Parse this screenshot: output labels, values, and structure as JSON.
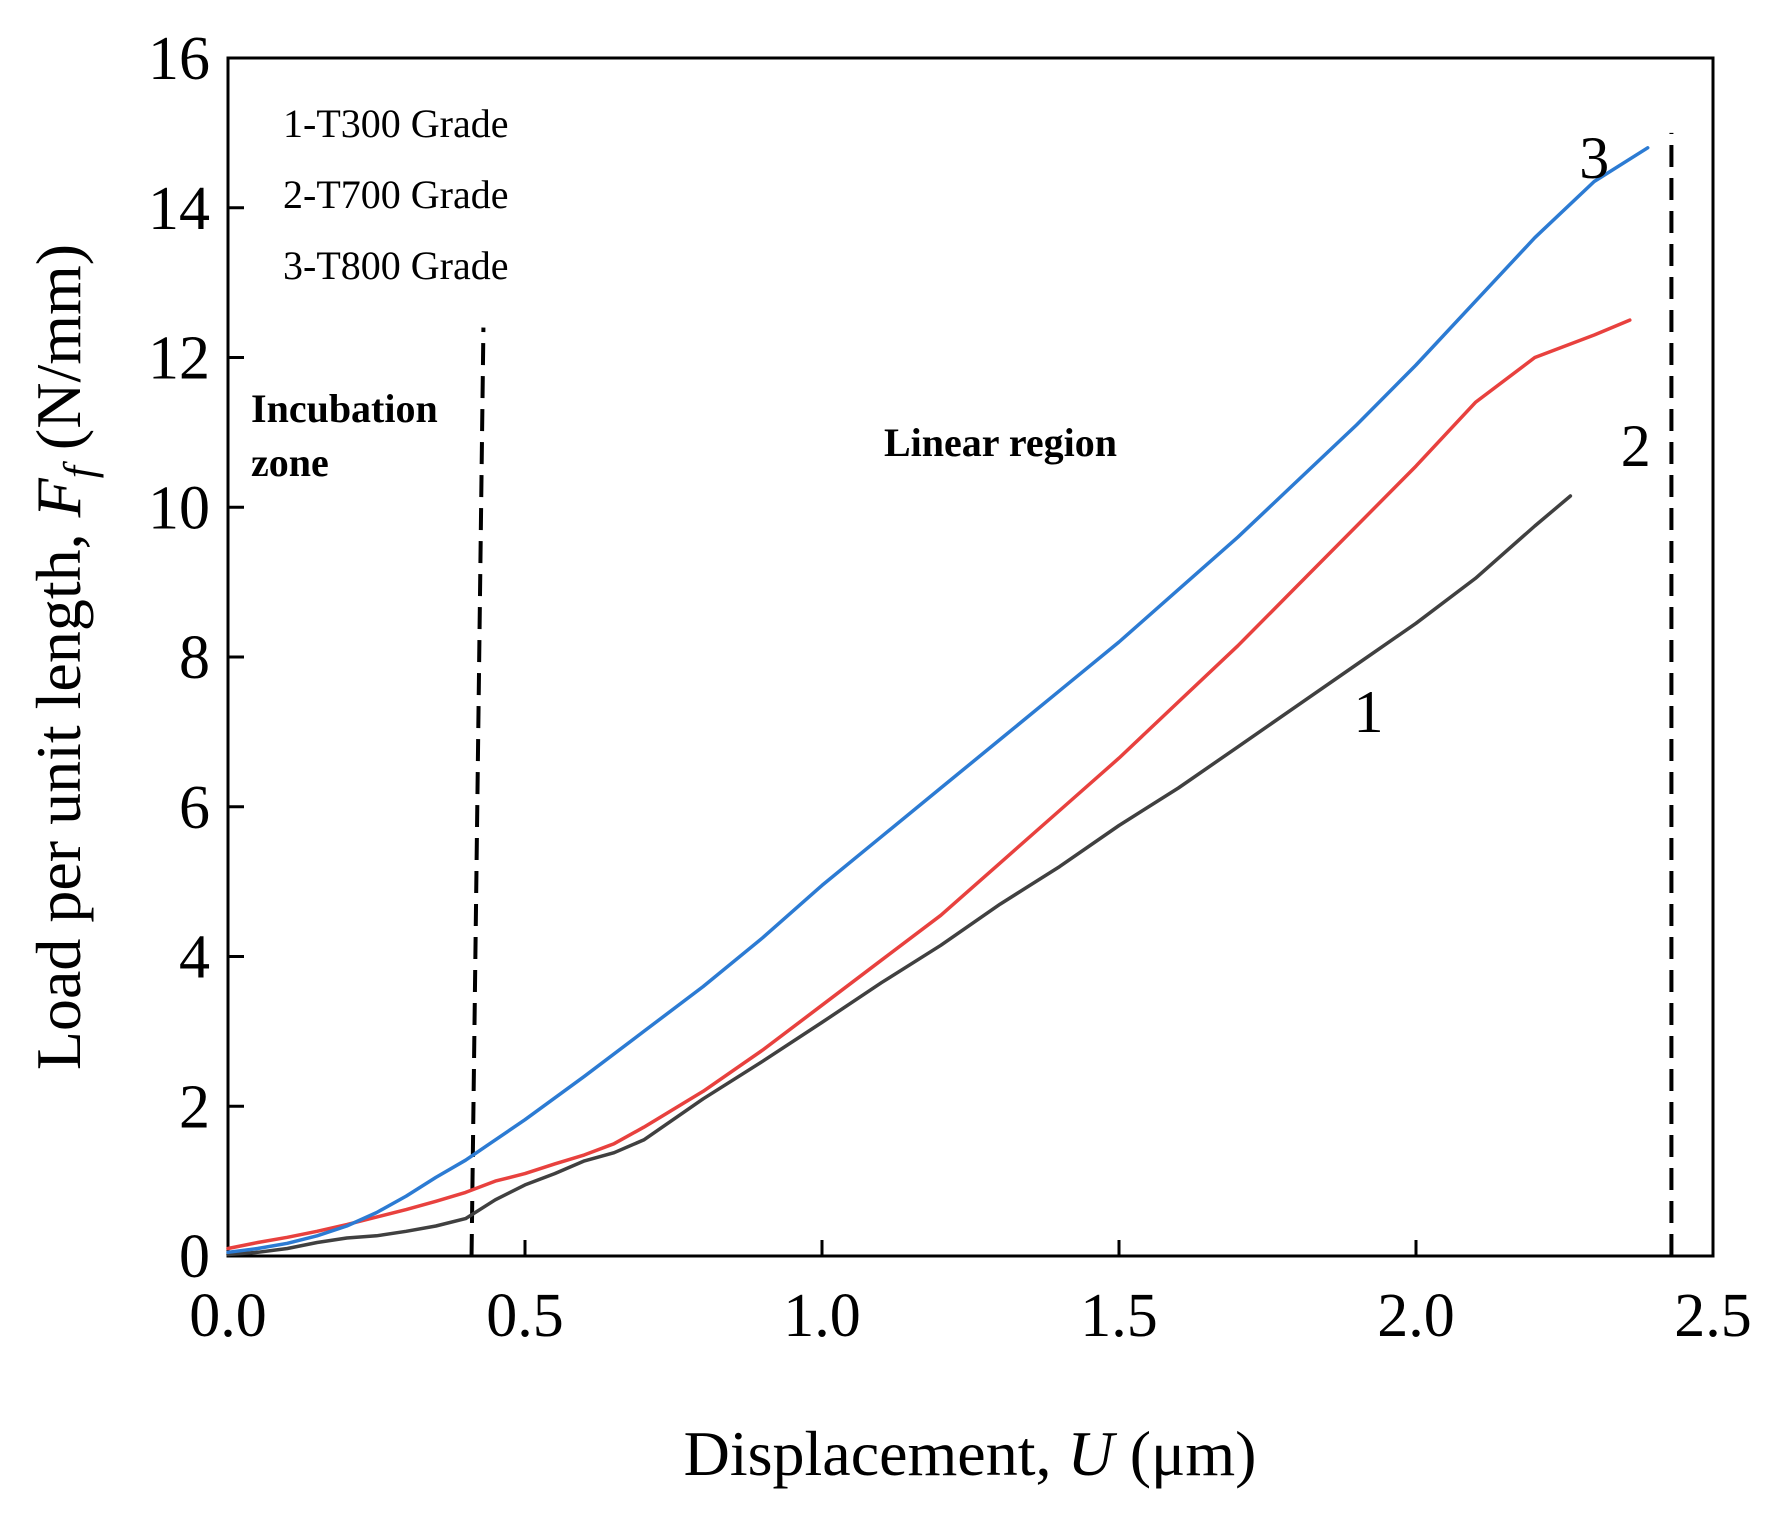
{
  "chart_data": {
    "type": "line",
    "xlabel": "Displacement, U (μm)",
    "xlabel_parts": [
      "Displacement, ",
      "U",
      " (μm)"
    ],
    "ylabel": "Load per unit length, F_f (N/mm)",
    "ylabel_parts": [
      "Load per unit length, ",
      "F",
      "f",
      " (N/mm)"
    ],
    "xlim": [
      0,
      2.5
    ],
    "ylim": [
      0,
      16
    ],
    "xticks": [
      0.0,
      0.5,
      1.0,
      1.5,
      2.0,
      2.5
    ],
    "xtick_labels": [
      "0.0",
      "0.5",
      "1.0",
      "1.5",
      "2.0",
      "2.5"
    ],
    "yticks": [
      0,
      2,
      4,
      6,
      8,
      10,
      12,
      14,
      16
    ],
    "ytick_labels": [
      "0",
      "2",
      "4",
      "6",
      "8",
      "10",
      "12",
      "14",
      "16"
    ],
    "grid": false,
    "legend": [
      "1-T300 Grade",
      "2-T700 Grade",
      "3-T800 Grade"
    ],
    "legend_position": "top-left",
    "region_labels": {
      "incubation_line1": "Incubation",
      "incubation_line2": "zone",
      "linear": "Linear region"
    },
    "vlines": [
      {
        "x_bottom": 0.41,
        "x_top": 0.43,
        "y_top": 12.4,
        "style": "dashed"
      },
      {
        "x_bottom": 2.43,
        "x_top": 2.43,
        "y_top": 15.0,
        "style": "dashed"
      }
    ],
    "series": [
      {
        "name": "1-T300 Grade",
        "label": "1",
        "label_at": [
          1.92,
          7.0
        ],
        "color": "#404040",
        "x": [
          0.0,
          0.05,
          0.1,
          0.15,
          0.2,
          0.25,
          0.3,
          0.35,
          0.4,
          0.45,
          0.5,
          0.55,
          0.6,
          0.65,
          0.7,
          0.8,
          0.9,
          1.0,
          1.1,
          1.2,
          1.3,
          1.4,
          1.5,
          1.6,
          1.7,
          1.8,
          1.9,
          2.0,
          2.1,
          2.2,
          2.26
        ],
        "values": [
          0.02,
          0.05,
          0.1,
          0.18,
          0.24,
          0.27,
          0.33,
          0.4,
          0.5,
          0.75,
          0.95,
          1.1,
          1.27,
          1.38,
          1.55,
          2.1,
          2.6,
          3.12,
          3.65,
          4.15,
          4.7,
          5.2,
          5.75,
          6.25,
          6.8,
          7.35,
          7.9,
          8.45,
          9.05,
          9.75,
          10.15
        ]
      },
      {
        "name": "2-T700 Grade",
        "label": "2",
        "label_at": [
          2.37,
          10.55
        ],
        "color": "#e8413e",
        "x": [
          0.0,
          0.05,
          0.1,
          0.15,
          0.2,
          0.25,
          0.3,
          0.35,
          0.4,
          0.45,
          0.5,
          0.55,
          0.6,
          0.65,
          0.7,
          0.8,
          0.9,
          1.0,
          1.1,
          1.2,
          1.3,
          1.4,
          1.5,
          1.6,
          1.7,
          1.8,
          1.9,
          2.0,
          2.1,
          2.2,
          2.3,
          2.36
        ],
        "values": [
          0.1,
          0.18,
          0.25,
          0.33,
          0.42,
          0.52,
          0.62,
          0.73,
          0.85,
          1.0,
          1.1,
          1.23,
          1.35,
          1.5,
          1.72,
          2.2,
          2.75,
          3.35,
          3.95,
          4.55,
          5.25,
          5.95,
          6.65,
          7.4,
          8.15,
          8.95,
          9.75,
          10.55,
          11.4,
          12.0,
          12.3,
          12.5
        ]
      },
      {
        "name": "3-T800 Grade",
        "label": "3",
        "label_at": [
          2.3,
          14.4
        ],
        "color": "#2c7bd3",
        "x": [
          0.0,
          0.05,
          0.1,
          0.15,
          0.2,
          0.25,
          0.3,
          0.35,
          0.4,
          0.45,
          0.5,
          0.6,
          0.7,
          0.8,
          0.9,
          1.0,
          1.1,
          1.2,
          1.3,
          1.4,
          1.5,
          1.6,
          1.7,
          1.8,
          1.9,
          2.0,
          2.1,
          2.2,
          2.3,
          2.39
        ],
        "values": [
          0.05,
          0.1,
          0.17,
          0.27,
          0.4,
          0.58,
          0.8,
          1.05,
          1.28,
          1.55,
          1.82,
          2.4,
          3.0,
          3.6,
          4.25,
          4.95,
          5.6,
          6.25,
          6.9,
          7.55,
          8.2,
          8.9,
          9.6,
          10.35,
          11.1,
          11.9,
          12.75,
          13.6,
          14.35,
          14.8
        ]
      }
    ]
  }
}
